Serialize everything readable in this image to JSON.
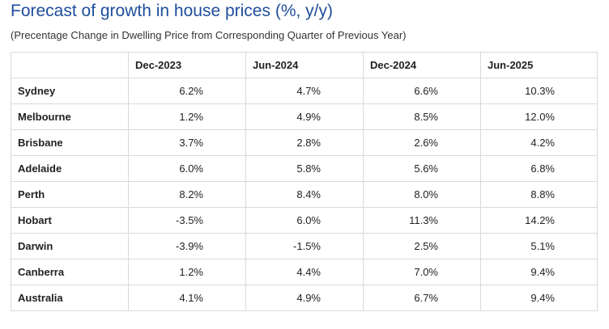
{
  "title": "Forecast of growth in house prices (%, y/y)",
  "subtitle": "(Precentage Change in Dwelling Price from Corresponding Quarter of Previous Year)",
  "table": {
    "columns": [
      "",
      "Dec-2023",
      "Jun-2024",
      "Dec-2024",
      "Jun-2025"
    ],
    "rows": [
      [
        "Sydney",
        "6.2%",
        "4.7%",
        "6.6%",
        "10.3%"
      ],
      [
        "Melbourne",
        "1.2%",
        "4.9%",
        "8.5%",
        "12.0%"
      ],
      [
        "Brisbane",
        "3.7%",
        "2.8%",
        "2.6%",
        "4.2%"
      ],
      [
        "Adelaide",
        "6.0%",
        "5.8%",
        "5.6%",
        "6.8%"
      ],
      [
        "Perth",
        "8.2%",
        "8.4%",
        "8.0%",
        "8.8%"
      ],
      [
        "Hobart",
        "-3.5%",
        "6.0%",
        "11.3%",
        "14.2%"
      ],
      [
        "Darwin",
        "-3.9%",
        "-1.5%",
        "2.5%",
        "5.1%"
      ],
      [
        "Canberra",
        "1.2%",
        "4.4%",
        "7.0%",
        "9.4%"
      ],
      [
        "Australia",
        "4.1%",
        "4.9%",
        "6.7%",
        "9.4%"
      ]
    ]
  },
  "colors": {
    "title": "#1f4e9c",
    "border": "#d9d9d9",
    "text": "#222222"
  }
}
